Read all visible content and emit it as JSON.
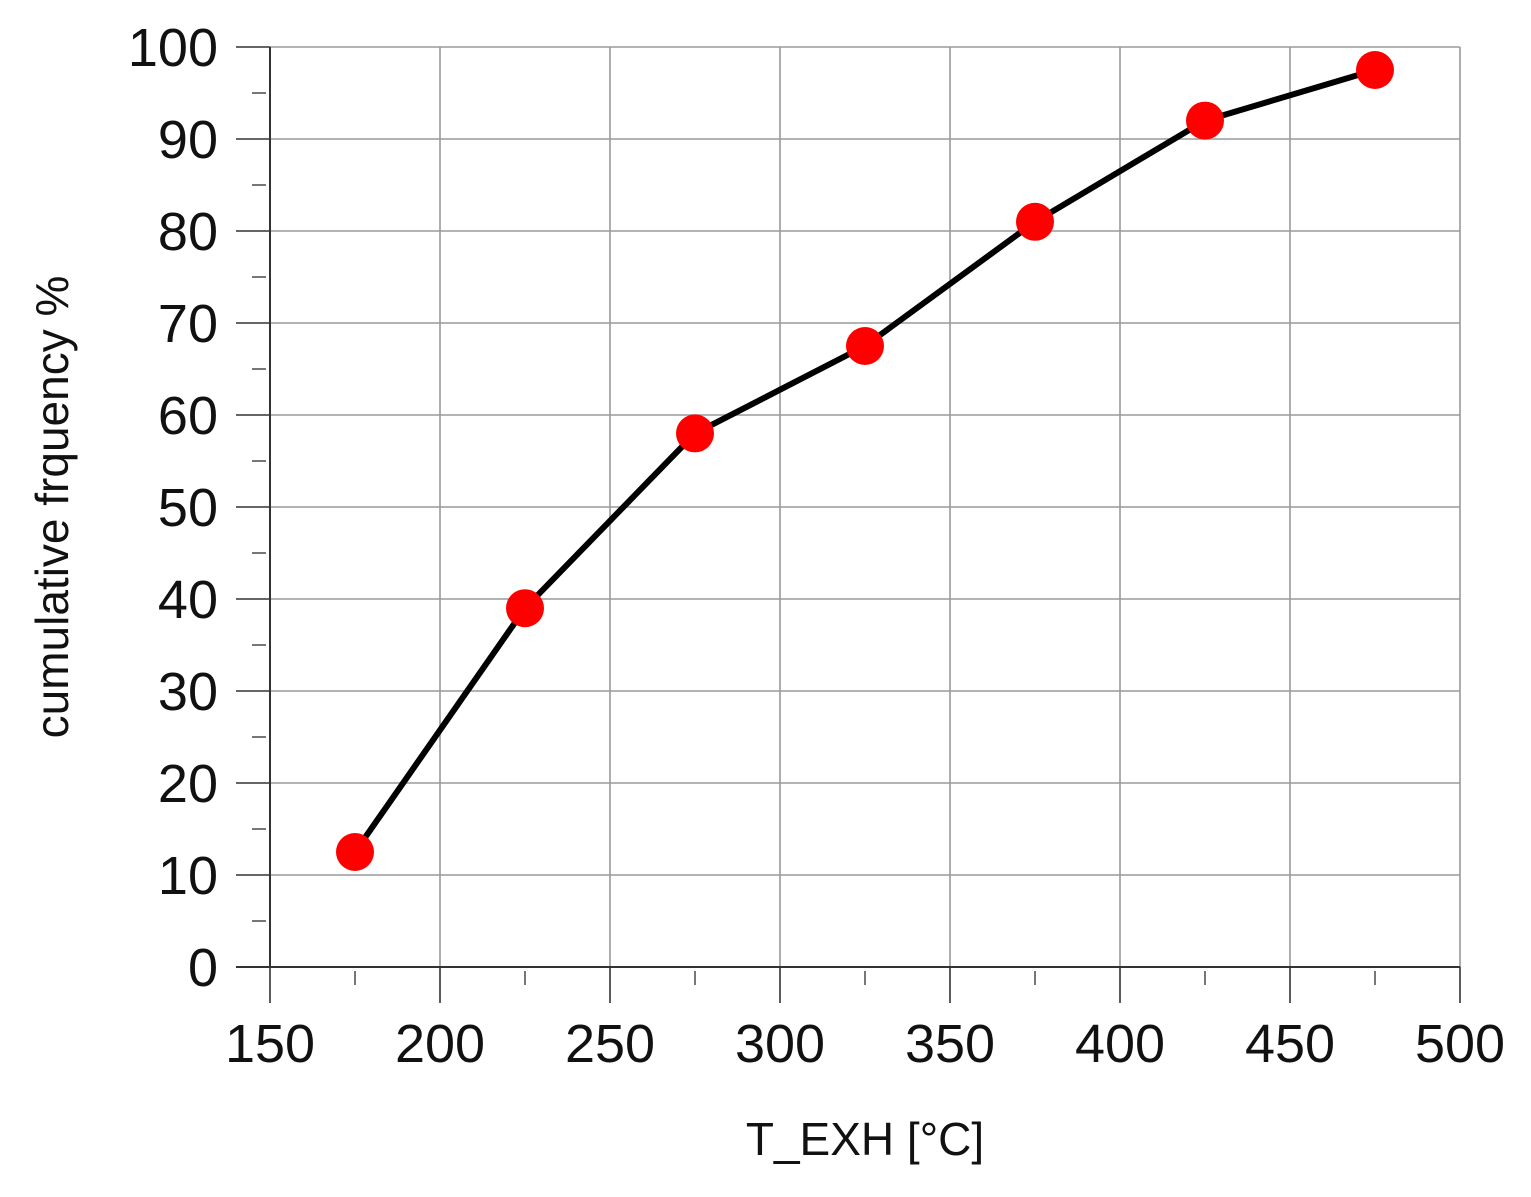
{
  "chart_data": {
    "type": "line",
    "title": "",
    "xlabel": "T_EXH [°C]",
    "ylabel": "cumulative frquency %",
    "xlim": [
      150,
      500
    ],
    "ylim": [
      0,
      100
    ],
    "x_ticks": [
      "150",
      "200",
      "250",
      "300",
      "350",
      "400",
      "450",
      "500"
    ],
    "y_ticks": [
      "0",
      "10",
      "20",
      "30",
      "40",
      "50",
      "60",
      "70",
      "80",
      "90",
      "100"
    ],
    "grid": true,
    "legend": "none",
    "series": [
      {
        "x": [
          175,
          225,
          275,
          325,
          375,
          425,
          475
        ],
        "y": [
          12.5,
          39,
          58,
          67.5,
          81,
          92,
          97.5
        ],
        "line_color": "#000000",
        "marker_color": "#ff0000"
      }
    ]
  }
}
